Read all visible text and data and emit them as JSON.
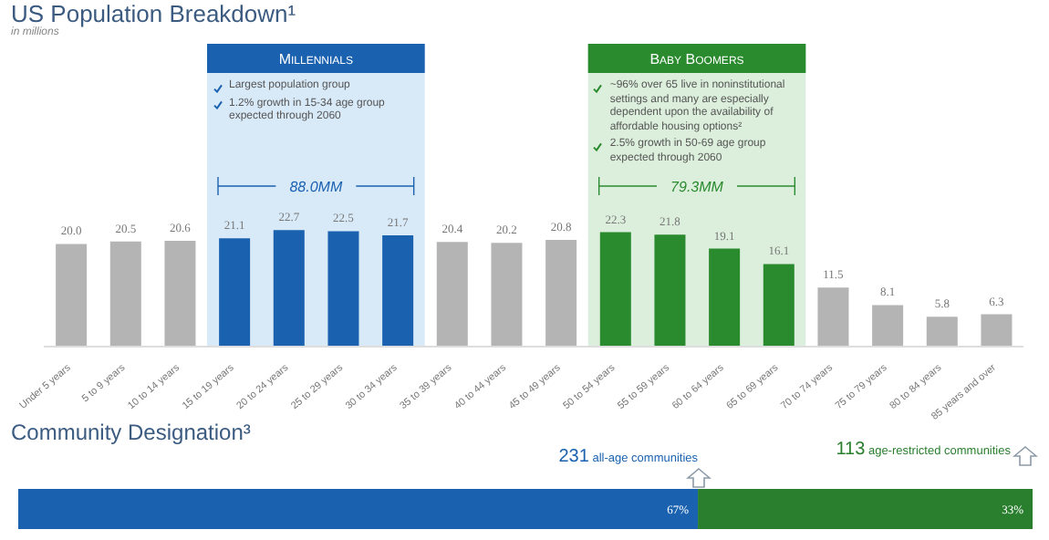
{
  "chart_data": [
    {
      "type": "bar",
      "title": "US Population Breakdown¹",
      "subtitle": "in millions",
      "categories": [
        "Under 5 years",
        "5 to 9 years",
        "10 to 14 years",
        "15 to 19 years",
        "20 to 24 years",
        "25 to 29 years",
        "30 to 34 years",
        "35 to 39 years",
        "40 to 44 years",
        "45 to 49 years",
        "50 to 54 years",
        "55 to 59 years",
        "60 to 64 years",
        "65 to 69 years",
        "70 to 74 years",
        "75 to 79 years",
        "80 to 84 years",
        "85 years and over"
      ],
      "values": [
        20.0,
        20.5,
        20.6,
        21.1,
        22.7,
        22.5,
        21.7,
        20.4,
        20.2,
        20.8,
        22.3,
        21.8,
        19.1,
        16.1,
        11.5,
        8.1,
        5.8,
        6.3
      ],
      "colors": [
        "#b4b4b4",
        "#b4b4b4",
        "#b4b4b4",
        "#1a62b0",
        "#1a62b0",
        "#1a62b0",
        "#1a62b0",
        "#b4b4b4",
        "#b4b4b4",
        "#b4b4b4",
        "#2a8a2e",
        "#2a8a2e",
        "#2a8a2e",
        "#2a8a2e",
        "#b4b4b4",
        "#b4b4b4",
        "#b4b4b4",
        "#b4b4b4"
      ],
      "value_labels": [
        "20.0",
        "20.5",
        "20.6",
        "21.1",
        "22.7",
        "22.5",
        "21.7",
        "20.4",
        "20.2",
        "20.8",
        "22.3",
        "21.8",
        "19.1",
        "16.1",
        "11.5",
        "8.1",
        "5.8",
        "6.3"
      ],
      "bands": [
        {
          "axis": "x",
          "from": "15 to 19 years",
          "to": "30 to 34 years",
          "label": "Millennials",
          "color": "#d8e9f8"
        },
        {
          "axis": "x",
          "from": "50 to 54 years",
          "to": "65 to 69 years",
          "label": "Baby Boomers",
          "color": "#dcefdc"
        }
      ],
      "annotations": [
        "Largest population group",
        "1.2% growth in 15-34 age group expected through 2060",
        "88.0MM",
        "~96% over 65 live in noninstitutional settings and many are especially dependent upon the availability of affordable housing options²",
        "2.5% growth in 50-69 age group expected through 2060",
        "79.3MM"
      ]
    },
    {
      "type": "bar",
      "title": "Community Designation³",
      "orientation": "horizontal",
      "stacked": true,
      "categories": [
        null
      ],
      "series": [
        {
          "color": "#1a62b0",
          "values": [
            67
          ],
          "value_labels": [
            "67%"
          ]
        },
        {
          "color": "#2a7f2e",
          "values": [
            33
          ],
          "value_labels": [
            "33%"
          ]
        }
      ],
      "annotations": [
        "231 all-age communities",
        "113 age-restricted communities"
      ]
    }
  ]
}
